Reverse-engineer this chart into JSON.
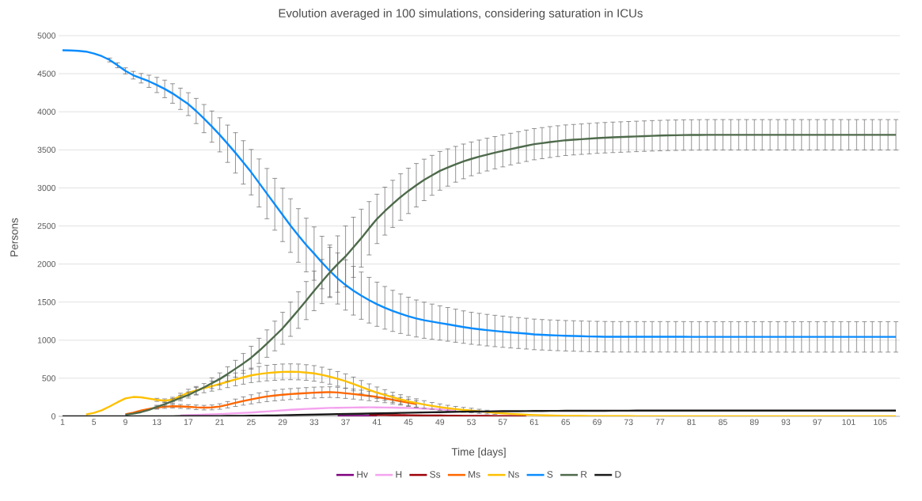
{
  "chart_data": {
    "type": "line",
    "title": "Evolution averaged in 100 simulations, considering saturation in ICUs",
    "xlabel": "Time [days]",
    "ylabel": "Persons",
    "x": [
      1,
      2,
      3,
      4,
      5,
      6,
      7,
      8,
      9,
      10,
      11,
      12,
      13,
      14,
      15,
      16,
      17,
      18,
      19,
      20,
      21,
      22,
      23,
      24,
      25,
      26,
      27,
      28,
      29,
      30,
      31,
      32,
      33,
      34,
      35,
      36,
      37,
      38,
      39,
      40,
      41,
      42,
      43,
      44,
      45,
      46,
      47,
      48,
      49,
      50,
      51,
      52,
      53,
      54,
      55,
      56,
      57,
      58,
      59,
      60,
      61,
      62,
      63,
      64,
      65,
      66,
      67,
      68,
      69,
      70,
      71,
      72,
      73,
      74,
      75,
      76,
      77,
      78,
      79,
      80,
      81,
      82,
      83,
      84,
      85,
      86,
      87,
      88,
      89,
      90,
      91,
      92,
      93,
      94,
      95,
      96,
      97,
      98,
      99,
      100,
      101,
      102,
      103,
      104,
      105,
      106,
      107
    ],
    "xlim": [
      0.5,
      107.5
    ],
    "xticks": [
      1,
      5,
      9,
      13,
      17,
      21,
      25,
      29,
      33,
      37,
      41,
      45,
      49,
      53,
      57,
      61,
      65,
      69,
      73,
      77,
      81,
      85,
      89,
      93,
      97,
      101,
      105
    ],
    "ylim": [
      0,
      5000
    ],
    "yticks": [
      0,
      500,
      1000,
      1500,
      2000,
      2500,
      3000,
      3500,
      4000,
      4500,
      5000
    ],
    "grid": "y",
    "legend": "bottom",
    "marker": "none",
    "line_style": "solid",
    "series": [
      {
        "name": "Hv",
        "color": "#7f007f",
        "values": [
          null,
          null,
          null,
          null,
          null,
          null,
          null,
          null,
          null,
          null,
          null,
          null,
          null,
          null,
          null,
          null,
          null,
          null,
          null,
          null,
          null,
          null,
          null,
          null,
          null,
          null,
          null,
          null,
          null,
          null,
          null,
          null,
          null,
          null,
          null,
          5,
          5,
          5,
          5,
          5,
          5,
          null,
          null,
          null,
          null,
          null,
          null,
          null,
          null,
          null,
          null,
          null,
          null,
          null,
          null,
          null,
          null,
          null,
          null,
          null,
          null,
          null,
          null,
          null,
          null,
          null,
          null,
          null,
          null,
          null,
          null,
          null,
          null,
          null,
          null,
          null,
          null,
          null,
          null,
          null,
          null,
          null,
          null,
          null,
          null,
          null,
          null,
          null,
          null,
          null,
          null,
          null,
          null,
          null,
          null,
          null,
          null,
          null,
          null,
          null,
          null,
          null,
          null,
          null,
          null,
          null,
          null
        ]
      },
      {
        "name": "H",
        "color": "#f4a3ee",
        "values": [
          null,
          null,
          null,
          null,
          null,
          null,
          null,
          null,
          null,
          null,
          null,
          null,
          null,
          null,
          null,
          12,
          15,
          18,
          22,
          26,
          30,
          35,
          40,
          45,
          50,
          57,
          64,
          71,
          78,
          85,
          91,
          97,
          102,
          106,
          110,
          112,
          114,
          116,
          117,
          118,
          117,
          116,
          114,
          112,
          110,
          106,
          102,
          97,
          91,
          84,
          77,
          null,
          null,
          null,
          null,
          null,
          null,
          null,
          null,
          null,
          null,
          null,
          null,
          null,
          null,
          null,
          null,
          null,
          null,
          null,
          null,
          null,
          null,
          null,
          null,
          null,
          null,
          null,
          null,
          null,
          null,
          null,
          null,
          null,
          null,
          null,
          null,
          null,
          null,
          null,
          null,
          null,
          null,
          null,
          null,
          null,
          null,
          null,
          null,
          null,
          null,
          null,
          null,
          null,
          null,
          null,
          null
        ]
      },
      {
        "name": "Ss",
        "color": "#9c0006",
        "values": [
          null,
          null,
          null,
          null,
          null,
          null,
          null,
          null,
          null,
          null,
          null,
          null,
          null,
          null,
          null,
          null,
          null,
          null,
          null,
          null,
          null,
          null,
          null,
          null,
          null,
          null,
          null,
          null,
          null,
          null,
          null,
          null,
          null,
          null,
          null,
          null,
          null,
          null,
          null,
          19,
          18,
          17,
          16,
          15,
          14,
          13,
          12,
          11,
          10,
          9,
          8,
          7,
          6,
          5,
          5,
          4,
          4,
          3,
          3,
          2,
          null,
          null,
          null,
          null,
          null,
          null,
          null,
          null,
          null,
          null,
          null,
          null,
          null,
          null,
          null,
          null,
          null,
          null,
          null,
          null,
          null,
          null,
          null,
          null,
          null,
          null,
          null,
          null,
          null,
          null,
          null,
          null,
          null,
          null,
          null,
          null,
          null,
          null,
          null,
          null,
          null,
          null,
          null,
          null,
          null,
          null,
          null
        ]
      },
      {
        "name": "Ms",
        "color": "#ff6600",
        "values": [
          null,
          null,
          null,
          null,
          null,
          null,
          null,
          null,
          27,
          48,
          76,
          97,
          114,
          126,
          133,
          130,
          125,
          118,
          114,
          117,
          129,
          152,
          178,
          201,
          223,
          243,
          261,
          273,
          284,
          292,
          299,
          305,
          311,
          315,
          318,
          313,
          303,
          292,
          280,
          267,
          254,
          236,
          217,
          197,
          178,
          161,
          null,
          null,
          null,
          null,
          null,
          null,
          null,
          null,
          null,
          null,
          null,
          null,
          null,
          null,
          null,
          null,
          null,
          null,
          null,
          null,
          null,
          null,
          null,
          null,
          null,
          null,
          null,
          null,
          null,
          null,
          null,
          null,
          null,
          null,
          null,
          null,
          null,
          null,
          null,
          null,
          null,
          null,
          null,
          null,
          null,
          null,
          null,
          null,
          null,
          null,
          null,
          null,
          null,
          null,
          null,
          null,
          null,
          null,
          null,
          null,
          null
        ],
        "errors": [
          null,
          null,
          null,
          null,
          null,
          null,
          null,
          null,
          null,
          null,
          null,
          null,
          20,
          22,
          24,
          26,
          28,
          30,
          30,
          32,
          36,
          42,
          48,
          54,
          60,
          64,
          68,
          70,
          72,
          72,
          72,
          72,
          72,
          71,
          70,
          69,
          68,
          66,
          64,
          62,
          60,
          57,
          54,
          50,
          47,
          44,
          null,
          null,
          null,
          null,
          null,
          null,
          null,
          null,
          null,
          null,
          null,
          null,
          null,
          null,
          null,
          null,
          null,
          null,
          null,
          null,
          null,
          null,
          null,
          null,
          null,
          null,
          null,
          null,
          null,
          null,
          null,
          null,
          null,
          null,
          null,
          null,
          null,
          null,
          null,
          null,
          null,
          null,
          null,
          null,
          null,
          null,
          null,
          null,
          null,
          null,
          null,
          null,
          null,
          null,
          null,
          null,
          null,
          null,
          null,
          null,
          null
        ]
      },
      {
        "name": "Ns",
        "color": "#ffc000",
        "values": [
          null,
          null,
          null,
          25,
          45,
          80,
          130,
          185,
          235,
          254,
          250,
          232,
          216,
          205,
          220,
          265,
          310,
          340,
          370,
          397,
          424,
          455,
          485,
          512,
          538,
          555,
          568,
          577,
          583,
          585,
          583,
          575,
          564,
          545,
          520,
          492,
          462,
          425,
          385,
          346,
          310,
          280,
          250,
          222,
          197,
          175,
          155,
          137,
          121,
          107,
          95,
          85,
          76,
          66,
          56,
          47,
          39,
          32,
          26,
          21,
          17,
          14,
          11,
          9,
          7,
          6,
          5,
          4,
          3,
          3,
          2,
          2,
          2,
          1,
          1,
          1,
          1,
          1,
          1,
          1,
          1,
          1,
          1,
          1,
          1,
          1,
          1,
          1,
          1,
          1,
          1,
          1,
          1,
          1,
          1,
          1,
          1,
          1,
          1,
          1,
          1,
          1,
          1,
          1,
          1,
          1,
          1
        ],
        "errors": [
          null,
          null,
          null,
          null,
          null,
          null,
          null,
          null,
          null,
          null,
          null,
          null,
          20,
          24,
          30,
          38,
          45,
          52,
          60,
          66,
          72,
          78,
          84,
          90,
          95,
          99,
          102,
          104,
          104,
          104,
          104,
          103,
          102,
          100,
          98,
          96,
          95,
          90,
          85,
          80,
          75,
          70,
          66,
          62,
          60,
          55,
          50,
          45,
          42,
          38,
          35,
          32,
          30,
          27,
          24,
          21,
          null,
          null,
          null,
          null,
          null,
          null,
          null,
          null,
          null,
          null,
          null,
          null,
          null,
          null,
          null,
          null,
          null,
          null,
          null,
          null,
          null,
          null,
          null,
          null,
          null,
          null,
          null,
          null,
          null,
          null,
          null,
          null,
          null,
          null,
          null,
          null,
          null,
          null,
          null,
          null,
          null,
          null,
          null,
          null,
          null,
          null,
          null,
          null,
          null,
          null,
          null
        ]
      },
      {
        "name": "S",
        "color": "#0a8cff",
        "values": [
          4807,
          4805,
          4800,
          4790,
          4765,
          4730,
          4680,
          4610,
          4537,
          4480,
          4440,
          4400,
          4352,
          4300,
          4240,
          4170,
          4100,
          4010,
          3910,
          3805,
          3697,
          3580,
          3460,
          3335,
          3206,
          3065,
          2925,
          2785,
          2645,
          2505,
          2375,
          2250,
          2137,
          2020,
          1910,
          1810,
          1725,
          1650,
          1585,
          1525,
          1472,
          1425,
          1385,
          1348,
          1314,
          1285,
          1262,
          1243,
          1226,
          1208,
          1190,
          1172,
          1156,
          1144,
          1132,
          1121,
          1111,
          1102,
          1094,
          1086,
          1076,
          1071,
          1066,
          1062,
          1058,
          1055,
          1052,
          1049,
          1047,
          1045,
          1044,
          1044,
          1044,
          1044,
          1044,
          1044,
          1044,
          1044,
          1044,
          1044,
          1043,
          1043,
          1043,
          1043,
          1043,
          1043,
          1043,
          1043,
          1043,
          1043,
          1043,
          1043,
          1043,
          1043,
          1043,
          1043,
          1043,
          1043,
          1043,
          1043,
          1043,
          1043,
          1043,
          1043,
          1043,
          1043,
          1043
        ],
        "errors": [
          null,
          null,
          null,
          null,
          null,
          null,
          25,
          32,
          40,
          50,
          62,
          80,
          100,
          115,
          128,
          140,
          150,
          165,
          185,
          205,
          224,
          245,
          265,
          285,
          298,
          315,
          330,
          340,
          350,
          352,
          352,
          352,
          350,
          345,
          340,
          335,
          330,
          320,
          310,
          300,
          290,
          280,
          270,
          260,
          250,
          243,
          237,
          231,
          225,
          221,
          217,
          213,
          210,
          208,
          207,
          206,
          205,
          204,
          203,
          202,
          201,
          200,
          200,
          200,
          200,
          200,
          200,
          200,
          200,
          200,
          200,
          200,
          200,
          200,
          200,
          200,
          200,
          200,
          200,
          200,
          200,
          200,
          200,
          200,
          200,
          200,
          200,
          200,
          200,
          200,
          200,
          200,
          200,
          200,
          200,
          200,
          200,
          200,
          200,
          200,
          200,
          200,
          200,
          200,
          200,
          200,
          200
        ]
      },
      {
        "name": "R",
        "color": "#4e6a4b",
        "values": [
          null,
          null,
          null,
          null,
          null,
          null,
          null,
          null,
          20,
          35,
          55,
          85,
          123,
          160,
          200,
          240,
          280,
          330,
          380,
          435,
          490,
          555,
          625,
          695,
          770,
          860,
          955,
          1055,
          1156,
          1275,
          1395,
          1520,
          1647,
          1770,
          1890,
          2000,
          2100,
          2220,
          2340,
          2470,
          2593,
          2695,
          2790,
          2880,
          2961,
          3035,
          3105,
          3165,
          3224,
          3268,
          3310,
          3348,
          3381,
          3410,
          3437,
          3462,
          3486,
          3510,
          3532,
          3553,
          3574,
          3588,
          3602,
          3614,
          3626,
          3633,
          3640,
          3647,
          3654,
          3659,
          3664,
          3668,
          3672,
          3676,
          3680,
          3684,
          3687,
          3690,
          3692,
          3694,
          3695,
          3696,
          3697,
          3697,
          3697,
          3697,
          3697,
          3697,
          3697,
          3697,
          3697,
          3697,
          3697,
          3697,
          3697,
          3697,
          3697,
          3697,
          3697,
          3697,
          3697,
          3697,
          3697,
          3697,
          3697,
          3697,
          3697
        ],
        "errors": [
          null,
          null,
          null,
          null,
          null,
          null,
          null,
          null,
          null,
          null,
          null,
          null,
          22,
          27,
          32,
          36,
          40,
          50,
          null,
          70,
          80,
          95,
          110,
          130,
          150,
          165,
          180,
          195,
          210,
          225,
          240,
          250,
          260,
          290,
          330,
          370,
          400,
          395,
          380,
          350,
          324,
          315,
          310,
          305,
          298,
          285,
          272,
          262,
          254,
          245,
          235,
          228,
          222,
          218,
          215,
          212,
          210,
          208,
          207,
          206,
          205,
          204,
          203,
          202,
          201,
          200,
          200,
          200,
          200,
          200,
          200,
          200,
          200,
          200,
          200,
          200,
          200,
          200,
          200,
          200,
          200,
          200,
          200,
          200,
          200,
          200,
          200,
          200,
          200,
          200,
          200,
          200,
          200,
          200,
          200,
          200,
          200,
          200,
          200,
          200,
          200,
          200,
          200,
          200,
          200,
          200,
          200
        ]
      },
      {
        "name": "D",
        "color": "#1a1a1a",
        "values": [
          0,
          0,
          0,
          0,
          0,
          0,
          0,
          0,
          0,
          0,
          0,
          0,
          1,
          1,
          1,
          2,
          2,
          2,
          3,
          3,
          4,
          5,
          6,
          7,
          8,
          9,
          11,
          12,
          14,
          16,
          18,
          20,
          22,
          24,
          26,
          28,
          30,
          32,
          34,
          36,
          38,
          40,
          42,
          45,
          47,
          49,
          51,
          53,
          55,
          57,
          59,
          61,
          62,
          63,
          64,
          66,
          67,
          68,
          68,
          69,
          70,
          70,
          71,
          71,
          72,
          72,
          72,
          73,
          73,
          73,
          74,
          74,
          74,
          75,
          75,
          75,
          75,
          75,
          75,
          75,
          75,
          75,
          75,
          75,
          75,
          75,
          75,
          75,
          75,
          75,
          75,
          75,
          75,
          75,
          75,
          75,
          75,
          75,
          75,
          75,
          75,
          75,
          75,
          75,
          75,
          75,
          75
        ]
      }
    ]
  }
}
